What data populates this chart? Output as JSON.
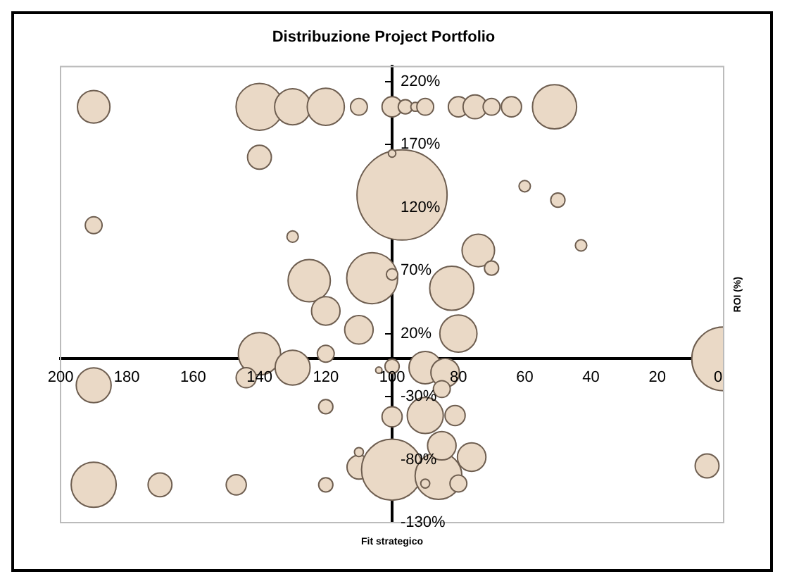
{
  "chart_data": {
    "type": "bubble",
    "title": "Distribuzione Project Portfolio",
    "xlabel": "Fit strategico",
    "ylabel": "ROI (%)",
    "xlim": [
      200,
      0
    ],
    "xticks": [
      200,
      180,
      160,
      140,
      120,
      100,
      80,
      60,
      40,
      20,
      0
    ],
    "ylim": [
      -130,
      232
    ],
    "yticks": [
      {
        "value": -130,
        "label": "-130%"
      },
      {
        "value": -80,
        "label": "-80%"
      },
      {
        "value": -30,
        "label": "-30%"
      },
      {
        "value": 20,
        "label": "20%"
      },
      {
        "value": 70,
        "label": "70%"
      },
      {
        "value": 120,
        "label": "120%"
      },
      {
        "value": 170,
        "label": "170%"
      },
      {
        "value": 220,
        "label": "220%"
      }
    ],
    "grid": false,
    "legend": false,
    "series": [
      {
        "color": "#ead9c6",
        "x": [
          190,
          140,
          130,
          120,
          110,
          100,
          96,
          93,
          90,
          80,
          75,
          70,
          64,
          51,
          140,
          97,
          100,
          60,
          50,
          43,
          190,
          130,
          125,
          106,
          100,
          74,
          70,
          82,
          120,
          110,
          140,
          130,
          120,
          144,
          190,
          120,
          190,
          170,
          147,
          120,
          110,
          110,
          100,
          86,
          90,
          80,
          85,
          76,
          5,
          100,
          90,
          81,
          90,
          84,
          85,
          80,
          100,
          104,
          0
        ],
        "values": [
          200,
          200,
          200,
          200,
          200,
          200,
          200,
          200,
          200,
          200,
          200,
          200,
          200,
          200,
          160,
          130,
          163,
          137,
          126,
          90,
          106,
          97,
          62,
          64,
          67,
          86,
          72,
          56,
          38,
          23,
          4,
          -7,
          4,
          -15,
          -21,
          -38,
          -100,
          -100,
          -100,
          -100,
          -86,
          -74,
          -88,
          -93,
          -99,
          -99,
          -69,
          -78,
          -85,
          -46,
          -45,
          -45,
          -7,
          -11,
          -24,
          20,
          -6,
          -9,
          0
        ],
        "sizes": [
          0.13,
          0.27,
          0.16,
          0.17,
          0.035,
          0.05,
          0.025,
          0.01,
          0.035,
          0.05,
          0.07,
          0.035,
          0.05,
          0.24,
          0.07,
          1,
          0.007,
          0.016,
          0.025,
          0.016,
          0.035,
          0.016,
          0.22,
          0.32,
          0.016,
          0.13,
          0.025,
          0.24,
          0.1,
          0.1,
          0.22,
          0.15,
          0.035,
          0.05,
          0.15,
          0.025,
          0.25,
          0.07,
          0.05,
          0.025,
          0.07,
          0.01,
          0.46,
          0.27,
          0.01,
          0.035,
          0.1,
          0.1,
          0.07,
          0.05,
          0.16,
          0.05,
          0.13,
          0.1,
          0.035,
          0.17,
          0.025,
          0.005,
          0.5
        ]
      }
    ]
  }
}
